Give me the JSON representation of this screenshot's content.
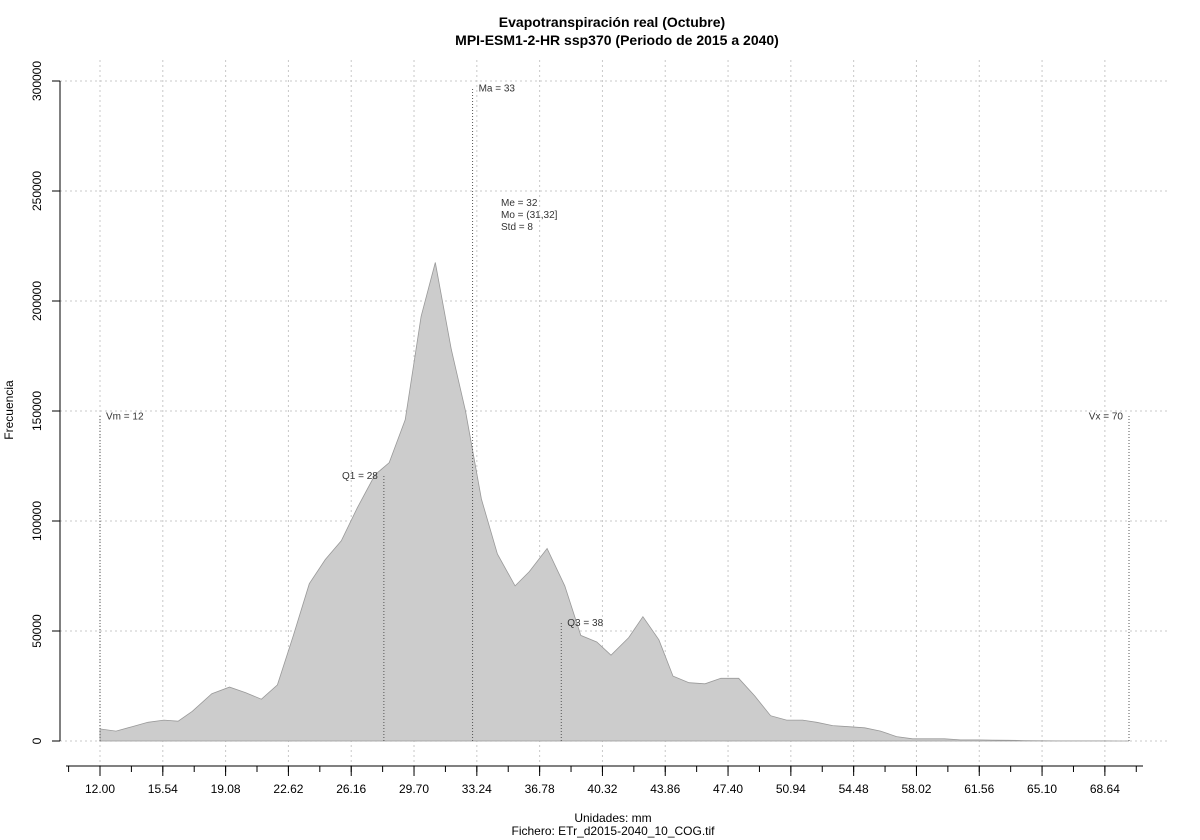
{
  "chart_data": {
    "type": "area",
    "title": "Evapotranspiración real (Octubre)",
    "subtitle": "MPI-ESM1-2-HR ssp370 (Periodo de 2015 a 2040)",
    "xlabel": "Unidades: mm",
    "caption": "Fichero: ETr_d2015-2040_10_COG.tif",
    "ylabel": "Frecuencia",
    "xlim": [
      12,
      70
    ],
    "ylim": [
      0,
      300000
    ],
    "x_ticks": [
      "12.00",
      "15.54",
      "19.08",
      "22.62",
      "26.16",
      "29.70",
      "33.24",
      "36.78",
      "40.32",
      "43.86",
      "47.40",
      "50.94",
      "54.48",
      "58.02",
      "61.56",
      "65.10",
      "68.64"
    ],
    "x_tick_values": [
      12.0,
      15.54,
      19.08,
      22.62,
      26.16,
      29.7,
      33.24,
      36.78,
      40.32,
      43.86,
      47.4,
      50.94,
      54.48,
      58.02,
      61.56,
      65.1,
      68.64
    ],
    "y_ticks": [
      "0",
      "50000",
      "100000",
      "150000",
      "200000",
      "250000",
      "300000"
    ],
    "y_tick_values": [
      0,
      50000,
      100000,
      150000,
      200000,
      250000,
      300000
    ],
    "grid": true,
    "fill_color": "#cccccc",
    "line_color": "#999999",
    "x": [
      12,
      12.9,
      13.8,
      14.7,
      15.6,
      16.4,
      17.2,
      18.3,
      19.3,
      20.2,
      21.1,
      22,
      22.9,
      23.8,
      24.7,
      25.6,
      26.5,
      27.5,
      28.3,
      29.2,
      30.1,
      30.9,
      31.8,
      32.6,
      33.5,
      34.4,
      35.4,
      36.2,
      37.2,
      38.2,
      39.1,
      40,
      40.8,
      41.8,
      42.6,
      43.5,
      44.3,
      45.2,
      46.1,
      47,
      48,
      48.9,
      49.8,
      50.7,
      51.6,
      52.4,
      53.3,
      54.2,
      55.1,
      56,
      56.9,
      57.8,
      58.7,
      59.6,
      60.5,
      61.5,
      62.3,
      63.2,
      64.1,
      65,
      65.9,
      66.8,
      67.7,
      68.6,
      69.4,
      70
    ],
    "y": [
      5500,
      4500,
      6500,
      8500,
      9500,
      9000,
      13500,
      21500,
      24500,
      22000,
      19000,
      25500,
      48000,
      71500,
      82500,
      91000,
      106000,
      121000,
      126500,
      146000,
      193000,
      217500,
      178000,
      150000,
      110000,
      85000,
      70500,
      77000,
      87500,
      70500,
      48000,
      45000,
      39000,
      47000,
      56500,
      46000,
      29500,
      26500,
      26000,
      28500,
      28500,
      20500,
      11500,
      9500,
      9500,
      8500,
      7000,
      6500,
      6000,
      4500,
      2000,
      1000,
      1000,
      1000,
      500,
      500,
      400,
      300,
      200,
      100,
      50,
      50,
      50,
      30,
      20,
      10
    ],
    "reference_lines": [
      {
        "label": "Vm = 12",
        "x": 12,
        "y_top": 148000,
        "label_side": "right"
      },
      {
        "label": "Q1 = 28",
        "x": 28,
        "y_top": 121000,
        "label_side": "left"
      },
      {
        "label": "Ma = 33",
        "x": 33,
        "y_top": 297000,
        "label_side": "right"
      },
      {
        "label": "Q3 = 38",
        "x": 38,
        "y_top": 54000,
        "label_side": "right"
      },
      {
        "label": "Vx = 70",
        "x": 70,
        "y_top": 148000,
        "label_side": "left"
      }
    ],
    "stats": [
      "Me = 32",
      "Mo = (31,32]",
      "Std = 8"
    ]
  }
}
